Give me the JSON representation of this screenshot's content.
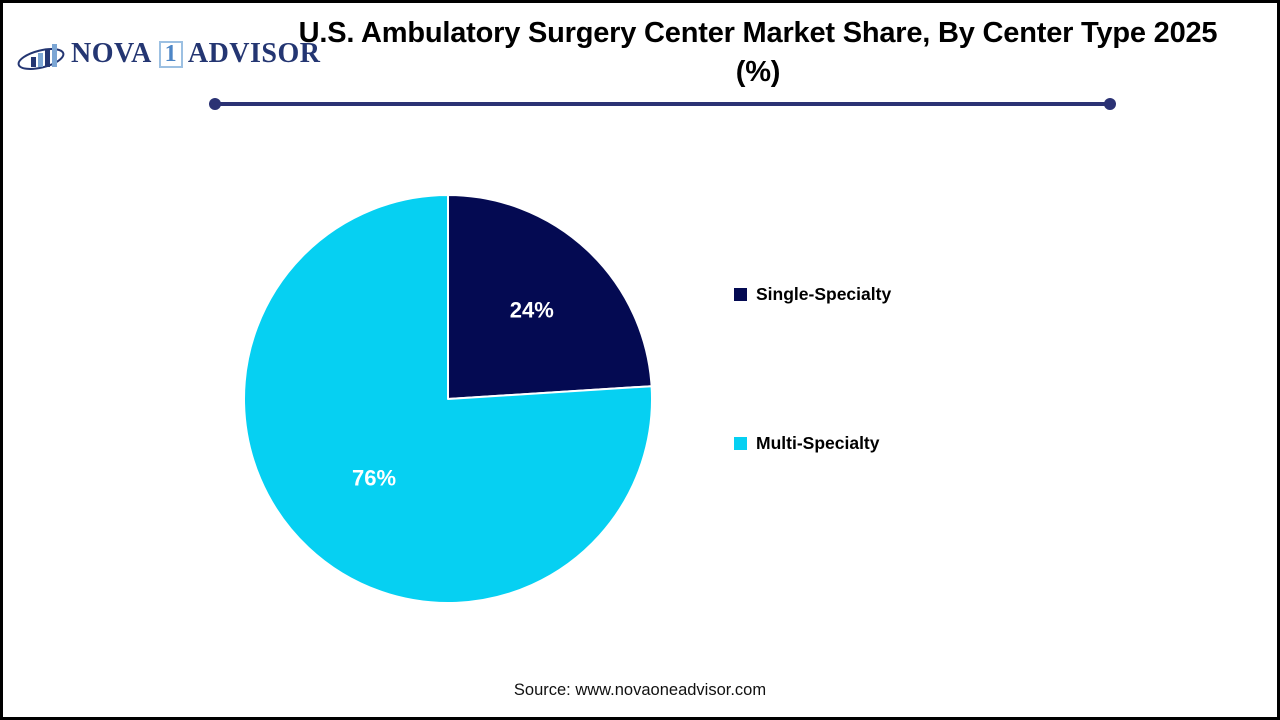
{
  "logo": {
    "word1": "NOVA",
    "digit": "1",
    "word2": "ADVISOR",
    "navy": "#243672",
    "light_blue": "#7ca6d4"
  },
  "title": "U.S. Ambulatory Surgery Center Market Share, By Center Type 2025 (%)",
  "chart_data": {
    "type": "pie",
    "title": "U.S. Ambulatory Surgery Center Market Share, By Center Type 2025 (%)",
    "slices": [
      {
        "label": "Single-Specialty",
        "value": 24,
        "display": "24%",
        "color": "#040a52",
        "label_radius_fraction": 0.6
      },
      {
        "label": "Multi-Specialty",
        "value": 76,
        "display": "76%",
        "color": "#06d0f2",
        "label_radius_fraction": 0.53
      }
    ],
    "start_angle_deg": 0,
    "direction": "clockwise",
    "legend_position": "right",
    "data_label_color": "#ffffff",
    "slice_separator_color": "#ffffff"
  },
  "source": "Source: www.novaoneadvisor.com",
  "divider_color": "#2b3274"
}
